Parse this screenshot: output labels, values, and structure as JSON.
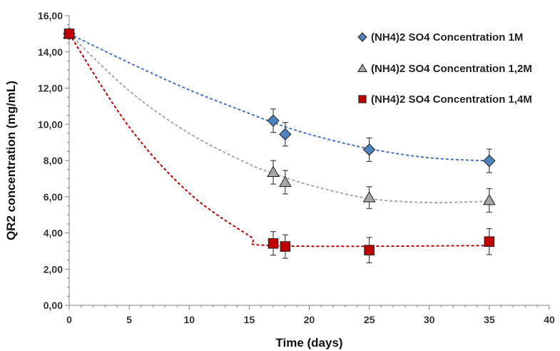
{
  "chart_data": {
    "type": "scatter",
    "title": "",
    "xlabel": "Time (days)",
    "ylabel": "QR2 concentration (mg/mL)",
    "xlim": [
      0,
      40
    ],
    "ylim": [
      0,
      16
    ],
    "x_ticks": [
      "0",
      "5",
      "10",
      "15",
      "20",
      "25",
      "30",
      "35",
      "40"
    ],
    "y_ticks": [
      "0,00",
      "2,00",
      "4,00",
      "6,00",
      "8,00",
      "10,00",
      "12,00",
      "14,00",
      "16,00"
    ],
    "grid": false,
    "legend_position": "top-right",
    "series": [
      {
        "name": "(NH4)2 SO4 Concentration  1M",
        "marker": "diamond",
        "color": "#4f81bd",
        "line_color": "#4472c4",
        "x": [
          0,
          17,
          18,
          25,
          35
        ],
        "y": [
          15.0,
          10.2,
          9.45,
          8.6,
          7.98
        ],
        "error": [
          0,
          0.65,
          0.65,
          0.65,
          0.65
        ],
        "trend": [
          [
            0,
            15.0
          ],
          [
            5,
            13.4
          ],
          [
            10,
            11.9
          ],
          [
            15,
            10.6
          ],
          [
            17,
            10.1
          ],
          [
            20,
            9.45
          ],
          [
            25,
            8.65
          ],
          [
            30,
            8.15
          ],
          [
            35,
            7.98
          ]
        ]
      },
      {
        "name": "(NH4)2 SO4 Concentration  1,2M",
        "marker": "triangle",
        "color": "#a6a6a6",
        "line_color": "#a6a6a6",
        "x": [
          0,
          17,
          18,
          25,
          35
        ],
        "y": [
          15.0,
          7.35,
          6.8,
          5.95,
          5.8
        ],
        "error": [
          0,
          0.65,
          0.65,
          0.6,
          0.65
        ],
        "trend": [
          [
            0,
            15.0
          ],
          [
            5,
            11.85
          ],
          [
            10,
            9.5
          ],
          [
            15,
            7.8
          ],
          [
            17,
            7.3
          ],
          [
            20,
            6.65
          ],
          [
            25,
            5.9
          ],
          [
            30,
            5.68
          ],
          [
            35,
            5.75
          ]
        ]
      },
      {
        "name": "(NH4)2 SO4 Concentration  1,4M",
        "marker": "square",
        "color": "#c00000",
        "line_color": "#c00000",
        "x": [
          0,
          17,
          18,
          25,
          35
        ],
        "y": [
          15.0,
          3.42,
          3.25,
          3.05,
          3.52
        ],
        "error": [
          0,
          0.65,
          0.65,
          0.7,
          0.72
        ],
        "trend": [
          [
            0,
            15.0
          ],
          [
            5,
            9.85
          ],
          [
            10,
            6.2
          ],
          [
            15,
            3.85
          ],
          [
            17,
            3.3
          ],
          [
            35,
            3.3
          ]
        ]
      }
    ]
  }
}
